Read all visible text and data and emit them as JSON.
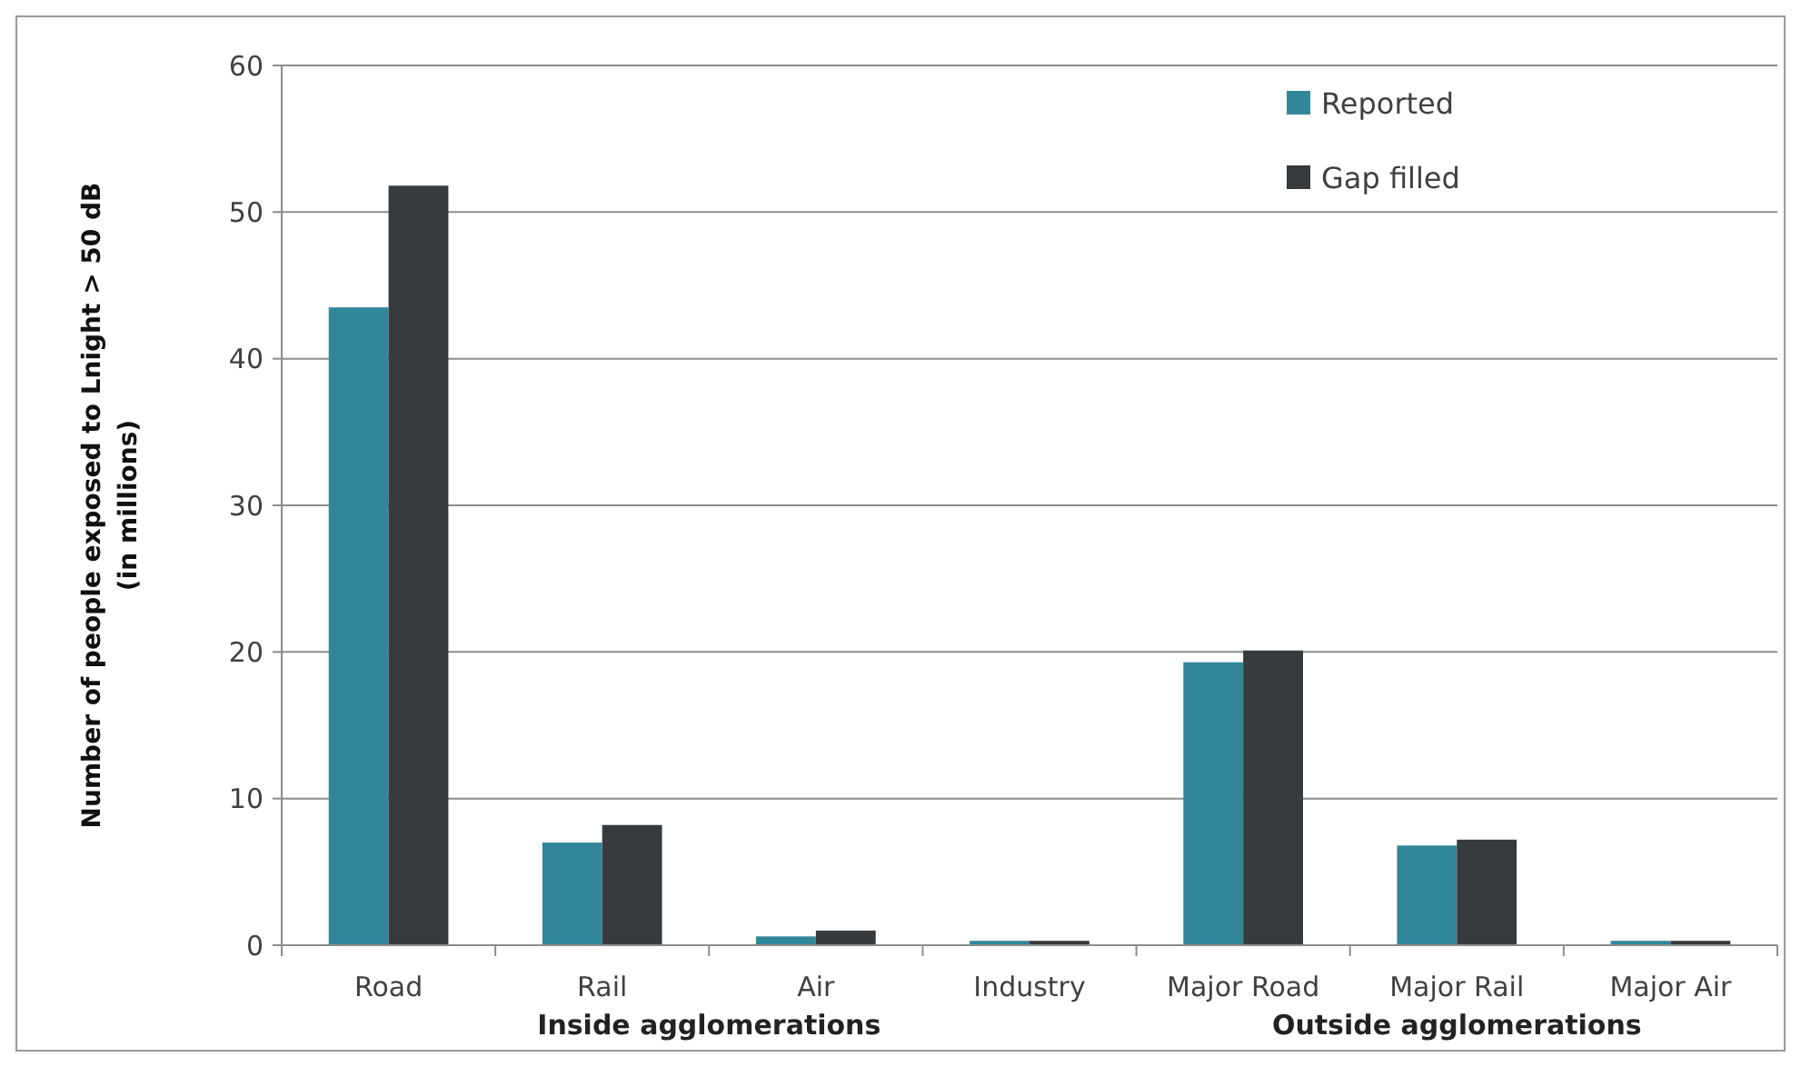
{
  "chart_data": {
    "type": "bar",
    "ylabel": "Number of people exposed to Lnight > 50 dB\n(in millions)",
    "categories": [
      "Road",
      "Rail",
      "Air",
      "Industry",
      "Major Road",
      "Major Rail",
      "Major Air"
    ],
    "series": [
      {
        "name": "Reported",
        "color": "#32869a",
        "values": [
          43.5,
          7,
          0.6,
          0.3,
          19.3,
          6.8,
          0.3
        ]
      },
      {
        "name": "Gap filled",
        "color": "#373b3e",
        "values": [
          51.8,
          8.2,
          1,
          0.3,
          20.1,
          7.2,
          0.3
        ]
      }
    ],
    "ylim": [
      0,
      60
    ],
    "yticks": [
      0,
      10,
      20,
      30,
      40,
      50,
      60
    ],
    "grid": "y",
    "legend": "top right",
    "annotations": [
      "Inside agglomerations",
      "Outside agglomerations"
    ]
  }
}
